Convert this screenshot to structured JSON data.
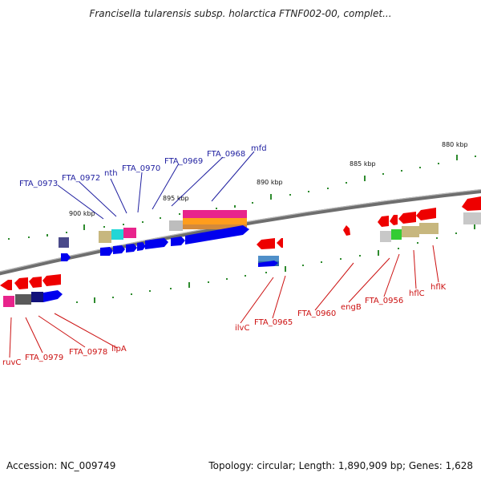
{
  "title": "Francisella tularensis subsp. holarctica FTNF002-00, complet...",
  "footer": {
    "accession": "Accession: NC_009749",
    "summary": "Topology: circular; Length: 1,890,909 bp; Genes: 1,628"
  },
  "scale_labels": [
    "880 kbp",
    "885 kbp",
    "890 kbp",
    "895 kbp",
    "900 kbp"
  ],
  "genes_top": [
    "FTA_0973",
    "FTA_0972",
    "nth",
    "FTA_0970",
    "FTA_0969",
    "FTA_0968",
    "mfd"
  ],
  "genes_bottom": [
    "ruvC",
    "FTA_0979",
    "FTA_0978",
    "lipA",
    "ilvC",
    "FTA_0965",
    "FTA_0960",
    "engB",
    "FTA_0956",
    "hflC",
    "hflK"
  ],
  "colors": {
    "forward_strand": "#0000ee",
    "reverse_strand": "#ee0000",
    "top_label": "#1f1fa0",
    "bottom_label": "#cc1111",
    "backbone": "#7a7a7a",
    "tick": "#2e8b2e"
  }
}
